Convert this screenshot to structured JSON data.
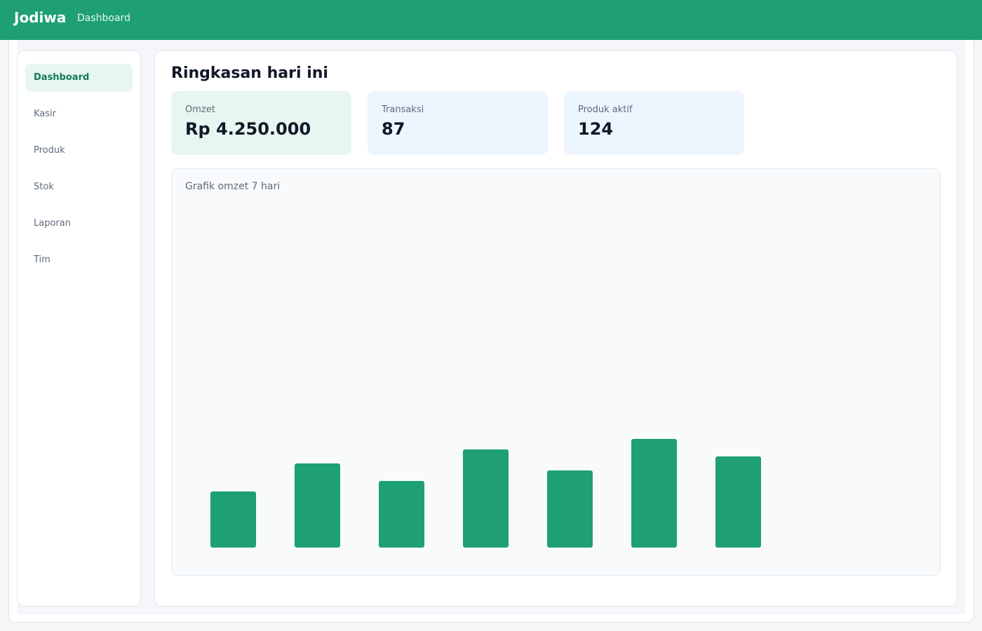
{
  "header": {
    "brand": "Jodiwa",
    "breadcrumb": "Dashboard",
    "color": "#1e9f76"
  },
  "sidebar": {
    "items": [
      {
        "label": "Dashboard",
        "active": true
      },
      {
        "label": "Kasir",
        "active": false
      },
      {
        "label": "Produk",
        "active": false
      },
      {
        "label": "Stok",
        "active": false
      },
      {
        "label": "Laporan",
        "active": false
      },
      {
        "label": "Tim",
        "active": false
      }
    ]
  },
  "main": {
    "title": "Ringkasan hari ini",
    "stats": [
      {
        "label": "Omzet",
        "value": "Rp 4.250.000",
        "bg": "#e7f6f0"
      },
      {
        "label": "Transaksi",
        "value": "87",
        "bg": "#edf5fe"
      },
      {
        "label": "Produk aktif",
        "value": "124",
        "bg": "#edf5fe"
      }
    ],
    "chart_title": "Grafik omzet 7 hari"
  },
  "chart_data": {
    "type": "bar",
    "title": "Grafik omzet 7 hari",
    "categories": [
      "",
      "",
      "",
      "",
      "",
      "",
      ""
    ],
    "values": [
      80,
      120,
      95,
      140,
      110,
      155,
      130
    ],
    "ylim": [
      0,
      540
    ],
    "grid": false,
    "bar_color": "#1e9f76"
  }
}
